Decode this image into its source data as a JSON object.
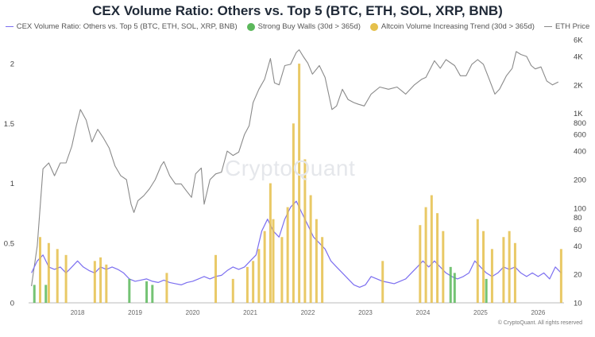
{
  "chart_data": {
    "type": "bar",
    "title": "CEX Volume Ratio: Others vs. Top 5 (BTC, ETH, SOL, XRP, BNB)",
    "legend": [
      {
        "label": "CEX Volume Ratio: Others vs. Top 5 (BTC, ETH, SOL, XRP, BNB)",
        "color": "#7c6ff0",
        "kind": "line"
      },
      {
        "label": "Strong Buy Walls (30d > 365d)",
        "color": "#5cb85c",
        "kind": "dot"
      },
      {
        "label": "Altcoin Volume Increasing Trend (30d > 365d)",
        "color": "#e5c04b",
        "kind": "dot"
      },
      {
        "label": "ETH Price",
        "color": "#8a8a8a",
        "kind": "line"
      }
    ],
    "legend_position": "top-center",
    "x": {
      "type": "time",
      "range": [
        2017.15,
        2026.45
      ],
      "tick_labels": [
        "2018",
        "2019",
        "2020",
        "2021",
        "2022",
        "2023",
        "2024",
        "2025",
        "2026"
      ]
    },
    "y_left": {
      "range": [
        0,
        2.2
      ],
      "tick_labels": [
        "0",
        "0.5",
        "1",
        "1.5",
        "2"
      ],
      "ticks": [
        0,
        0.5,
        1,
        1.5,
        2
      ]
    },
    "y_right": {
      "scale": "log",
      "range": [
        10,
        6000
      ],
      "tick_labels": [
        "10",
        "20",
        "40",
        "60",
        "80",
        "100",
        "200",
        "400",
        "600",
        "800",
        "1K",
        "2K",
        "4K",
        "6K"
      ],
      "ticks": [
        10,
        20,
        40,
        60,
        80,
        100,
        200,
        400,
        600,
        800,
        1000,
        2000,
        4000,
        6000
      ]
    },
    "grid": false,
    "series": [
      {
        "name": "ETH Price",
        "axis": "right",
        "points": [
          [
            2017.2,
            15
          ],
          [
            2017.3,
            40
          ],
          [
            2017.4,
            260
          ],
          [
            2017.5,
            300
          ],
          [
            2017.6,
            220
          ],
          [
            2017.7,
            300
          ],
          [
            2017.8,
            300
          ],
          [
            2017.9,
            450
          ],
          [
            2017.98,
            750
          ],
          [
            2018.05,
            1100
          ],
          [
            2018.15,
            850
          ],
          [
            2018.25,
            500
          ],
          [
            2018.35,
            680
          ],
          [
            2018.45,
            550
          ],
          [
            2018.55,
            430
          ],
          [
            2018.65,
            280
          ],
          [
            2018.75,
            220
          ],
          [
            2018.85,
            200
          ],
          [
            2018.93,
            110
          ],
          [
            2018.98,
            90
          ],
          [
            2019.05,
            120
          ],
          [
            2019.15,
            135
          ],
          [
            2019.25,
            160
          ],
          [
            2019.35,
            200
          ],
          [
            2019.45,
            280
          ],
          [
            2019.5,
            310
          ],
          [
            2019.6,
            220
          ],
          [
            2019.7,
            180
          ],
          [
            2019.8,
            180
          ],
          [
            2019.9,
            150
          ],
          [
            2019.98,
            130
          ],
          [
            2020.05,
            230
          ],
          [
            2020.15,
            265
          ],
          [
            2020.2,
            110
          ],
          [
            2020.3,
            200
          ],
          [
            2020.4,
            230
          ],
          [
            2020.5,
            240
          ],
          [
            2020.6,
            400
          ],
          [
            2020.7,
            360
          ],
          [
            2020.8,
            390
          ],
          [
            2020.9,
            600
          ],
          [
            2020.98,
            740
          ],
          [
            2021.05,
            1300
          ],
          [
            2021.15,
            1800
          ],
          [
            2021.25,
            2300
          ],
          [
            2021.35,
            3800
          ],
          [
            2021.42,
            2100
          ],
          [
            2021.5,
            2000
          ],
          [
            2021.6,
            3200
          ],
          [
            2021.7,
            3300
          ],
          [
            2021.8,
            4400
          ],
          [
            2021.85,
            4700
          ],
          [
            2021.92,
            4000
          ],
          [
            2022.0,
            3400
          ],
          [
            2022.08,
            2600
          ],
          [
            2022.2,
            3200
          ],
          [
            2022.3,
            2400
          ],
          [
            2022.42,
            1100
          ],
          [
            2022.5,
            1200
          ],
          [
            2022.6,
            1800
          ],
          [
            2022.7,
            1400
          ],
          [
            2022.8,
            1300
          ],
          [
            2022.88,
            1250
          ],
          [
            2022.98,
            1200
          ],
          [
            2023.1,
            1600
          ],
          [
            2023.25,
            1900
          ],
          [
            2023.4,
            1800
          ],
          [
            2023.55,
            1900
          ],
          [
            2023.7,
            1600
          ],
          [
            2023.85,
            2000
          ],
          [
            2023.98,
            2300
          ],
          [
            2024.05,
            2400
          ],
          [
            2024.2,
            3600
          ],
          [
            2024.3,
            3000
          ],
          [
            2024.4,
            3700
          ],
          [
            2024.55,
            3200
          ],
          [
            2024.65,
            2500
          ],
          [
            2024.75,
            2500
          ],
          [
            2024.85,
            3300
          ],
          [
            2024.95,
            3700
          ],
          [
            2025.05,
            3300
          ],
          [
            2025.15,
            2300
          ],
          [
            2025.25,
            1600
          ],
          [
            2025.33,
            1800
          ],
          [
            2025.45,
            2500
          ],
          [
            2025.55,
            3000
          ],
          [
            2025.62,
            4500
          ],
          [
            2025.7,
            4200
          ],
          [
            2025.8,
            4000
          ],
          [
            2025.88,
            3200
          ],
          [
            2025.95,
            2950
          ],
          [
            2026.05,
            3100
          ],
          [
            2026.15,
            2200
          ],
          [
            2026.25,
            2000
          ],
          [
            2026.35,
            2150
          ]
        ]
      },
      {
        "name": "CEX Volume Ratio: Others vs. Top 5 (BTC, ETH, SOL, XRP, BNB)",
        "axis": "left",
        "points": [
          [
            2017.2,
            0.25
          ],
          [
            2017.3,
            0.35
          ],
          [
            2017.4,
            0.4
          ],
          [
            2017.5,
            0.3
          ],
          [
            2017.6,
            0.28
          ],
          [
            2017.7,
            0.3
          ],
          [
            2017.8,
            0.25
          ],
          [
            2017.9,
            0.3
          ],
          [
            2018.0,
            0.35
          ],
          [
            2018.1,
            0.3
          ],
          [
            2018.2,
            0.27
          ],
          [
            2018.3,
            0.25
          ],
          [
            2018.4,
            0.3
          ],
          [
            2018.5,
            0.28
          ],
          [
            2018.6,
            0.3
          ],
          [
            2018.7,
            0.28
          ],
          [
            2018.8,
            0.25
          ],
          [
            2018.9,
            0.2
          ],
          [
            2019.0,
            0.18
          ],
          [
            2019.1,
            0.19
          ],
          [
            2019.2,
            0.2
          ],
          [
            2019.3,
            0.18
          ],
          [
            2019.4,
            0.17
          ],
          [
            2019.5,
            0.19
          ],
          [
            2019.6,
            0.17
          ],
          [
            2019.7,
            0.16
          ],
          [
            2019.8,
            0.15
          ],
          [
            2019.9,
            0.17
          ],
          [
            2020.0,
            0.18
          ],
          [
            2020.1,
            0.2
          ],
          [
            2020.2,
            0.22
          ],
          [
            2020.3,
            0.2
          ],
          [
            2020.4,
            0.22
          ],
          [
            2020.5,
            0.23
          ],
          [
            2020.6,
            0.27
          ],
          [
            2020.7,
            0.3
          ],
          [
            2020.8,
            0.28
          ],
          [
            2020.9,
            0.3
          ],
          [
            2021.0,
            0.35
          ],
          [
            2021.1,
            0.4
          ],
          [
            2021.2,
            0.6
          ],
          [
            2021.3,
            0.7
          ],
          [
            2021.4,
            0.6
          ],
          [
            2021.5,
            0.55
          ],
          [
            2021.6,
            0.7
          ],
          [
            2021.7,
            0.8
          ],
          [
            2021.8,
            0.85
          ],
          [
            2021.9,
            0.75
          ],
          [
            2022.0,
            0.65
          ],
          [
            2022.1,
            0.55
          ],
          [
            2022.2,
            0.5
          ],
          [
            2022.3,
            0.45
          ],
          [
            2022.4,
            0.35
          ],
          [
            2022.5,
            0.3
          ],
          [
            2022.6,
            0.25
          ],
          [
            2022.7,
            0.2
          ],
          [
            2022.8,
            0.15
          ],
          [
            2022.9,
            0.13
          ],
          [
            2023.0,
            0.15
          ],
          [
            2023.1,
            0.22
          ],
          [
            2023.2,
            0.2
          ],
          [
            2023.3,
            0.18
          ],
          [
            2023.4,
            0.17
          ],
          [
            2023.5,
            0.16
          ],
          [
            2023.6,
            0.18
          ],
          [
            2023.7,
            0.2
          ],
          [
            2023.8,
            0.25
          ],
          [
            2023.9,
            0.3
          ],
          [
            2024.0,
            0.35
          ],
          [
            2024.1,
            0.3
          ],
          [
            2024.2,
            0.35
          ],
          [
            2024.3,
            0.3
          ],
          [
            2024.4,
            0.25
          ],
          [
            2024.5,
            0.22
          ],
          [
            2024.6,
            0.2
          ],
          [
            2024.7,
            0.22
          ],
          [
            2024.8,
            0.25
          ],
          [
            2024.9,
            0.35
          ],
          [
            2025.0,
            0.3
          ],
          [
            2025.1,
            0.25
          ],
          [
            2025.2,
            0.22
          ],
          [
            2025.3,
            0.25
          ],
          [
            2025.4,
            0.3
          ],
          [
            2025.5,
            0.28
          ],
          [
            2025.6,
            0.3
          ],
          [
            2025.7,
            0.25
          ],
          [
            2025.8,
            0.22
          ],
          [
            2025.9,
            0.25
          ],
          [
            2026.0,
            0.22
          ],
          [
            2026.1,
            0.25
          ],
          [
            2026.2,
            0.2
          ],
          [
            2026.3,
            0.3
          ],
          [
            2026.4,
            0.25
          ]
        ]
      },
      {
        "name": "Altcoin Volume Increasing Trend (30d > 365d)",
        "axis": "left",
        "type": "bar",
        "points": [
          [
            2017.35,
            0.55
          ],
          [
            2017.5,
            0.5
          ],
          [
            2017.65,
            0.45
          ],
          [
            2017.8,
            0.4
          ],
          [
            2018.3,
            0.35
          ],
          [
            2018.4,
            0.38
          ],
          [
            2018.5,
            0.32
          ],
          [
            2019.55,
            0.25
          ],
          [
            2020.4,
            0.4
          ],
          [
            2020.7,
            0.2
          ],
          [
            2020.95,
            0.3
          ],
          [
            2021.05,
            0.35
          ],
          [
            2021.15,
            0.45
          ],
          [
            2021.25,
            0.6
          ],
          [
            2021.35,
            1.0
          ],
          [
            2021.4,
            0.7
          ],
          [
            2021.55,
            0.55
          ],
          [
            2021.65,
            0.8
          ],
          [
            2021.75,
            1.5
          ],
          [
            2021.85,
            2.0
          ],
          [
            2021.95,
            1.2
          ],
          [
            2022.05,
            0.9
          ],
          [
            2022.15,
            0.7
          ],
          [
            2022.25,
            0.55
          ],
          [
            2023.3,
            0.35
          ],
          [
            2023.95,
            0.65
          ],
          [
            2024.05,
            0.8
          ],
          [
            2024.15,
            0.9
          ],
          [
            2024.25,
            0.75
          ],
          [
            2024.35,
            0.6
          ],
          [
            2024.95,
            0.7
          ],
          [
            2025.05,
            0.6
          ],
          [
            2025.2,
            0.45
          ],
          [
            2025.4,
            0.55
          ],
          [
            2025.5,
            0.6
          ],
          [
            2025.6,
            0.5
          ],
          [
            2026.4,
            0.45
          ]
        ]
      },
      {
        "name": "Strong Buy Walls (30d > 365d)",
        "axis": "left",
        "type": "bar",
        "points": [
          [
            2017.25,
            0.15
          ],
          [
            2017.45,
            0.15
          ],
          [
            2018.9,
            0.2
          ],
          [
            2019.2,
            0.18
          ],
          [
            2019.3,
            0.15
          ],
          [
            2024.48,
            0.3
          ],
          [
            2024.55,
            0.25
          ],
          [
            2025.1,
            0.2
          ]
        ]
      }
    ]
  },
  "watermark": "CryptoQuant",
  "copyright": "© CryptoQuant. All rights reserved"
}
